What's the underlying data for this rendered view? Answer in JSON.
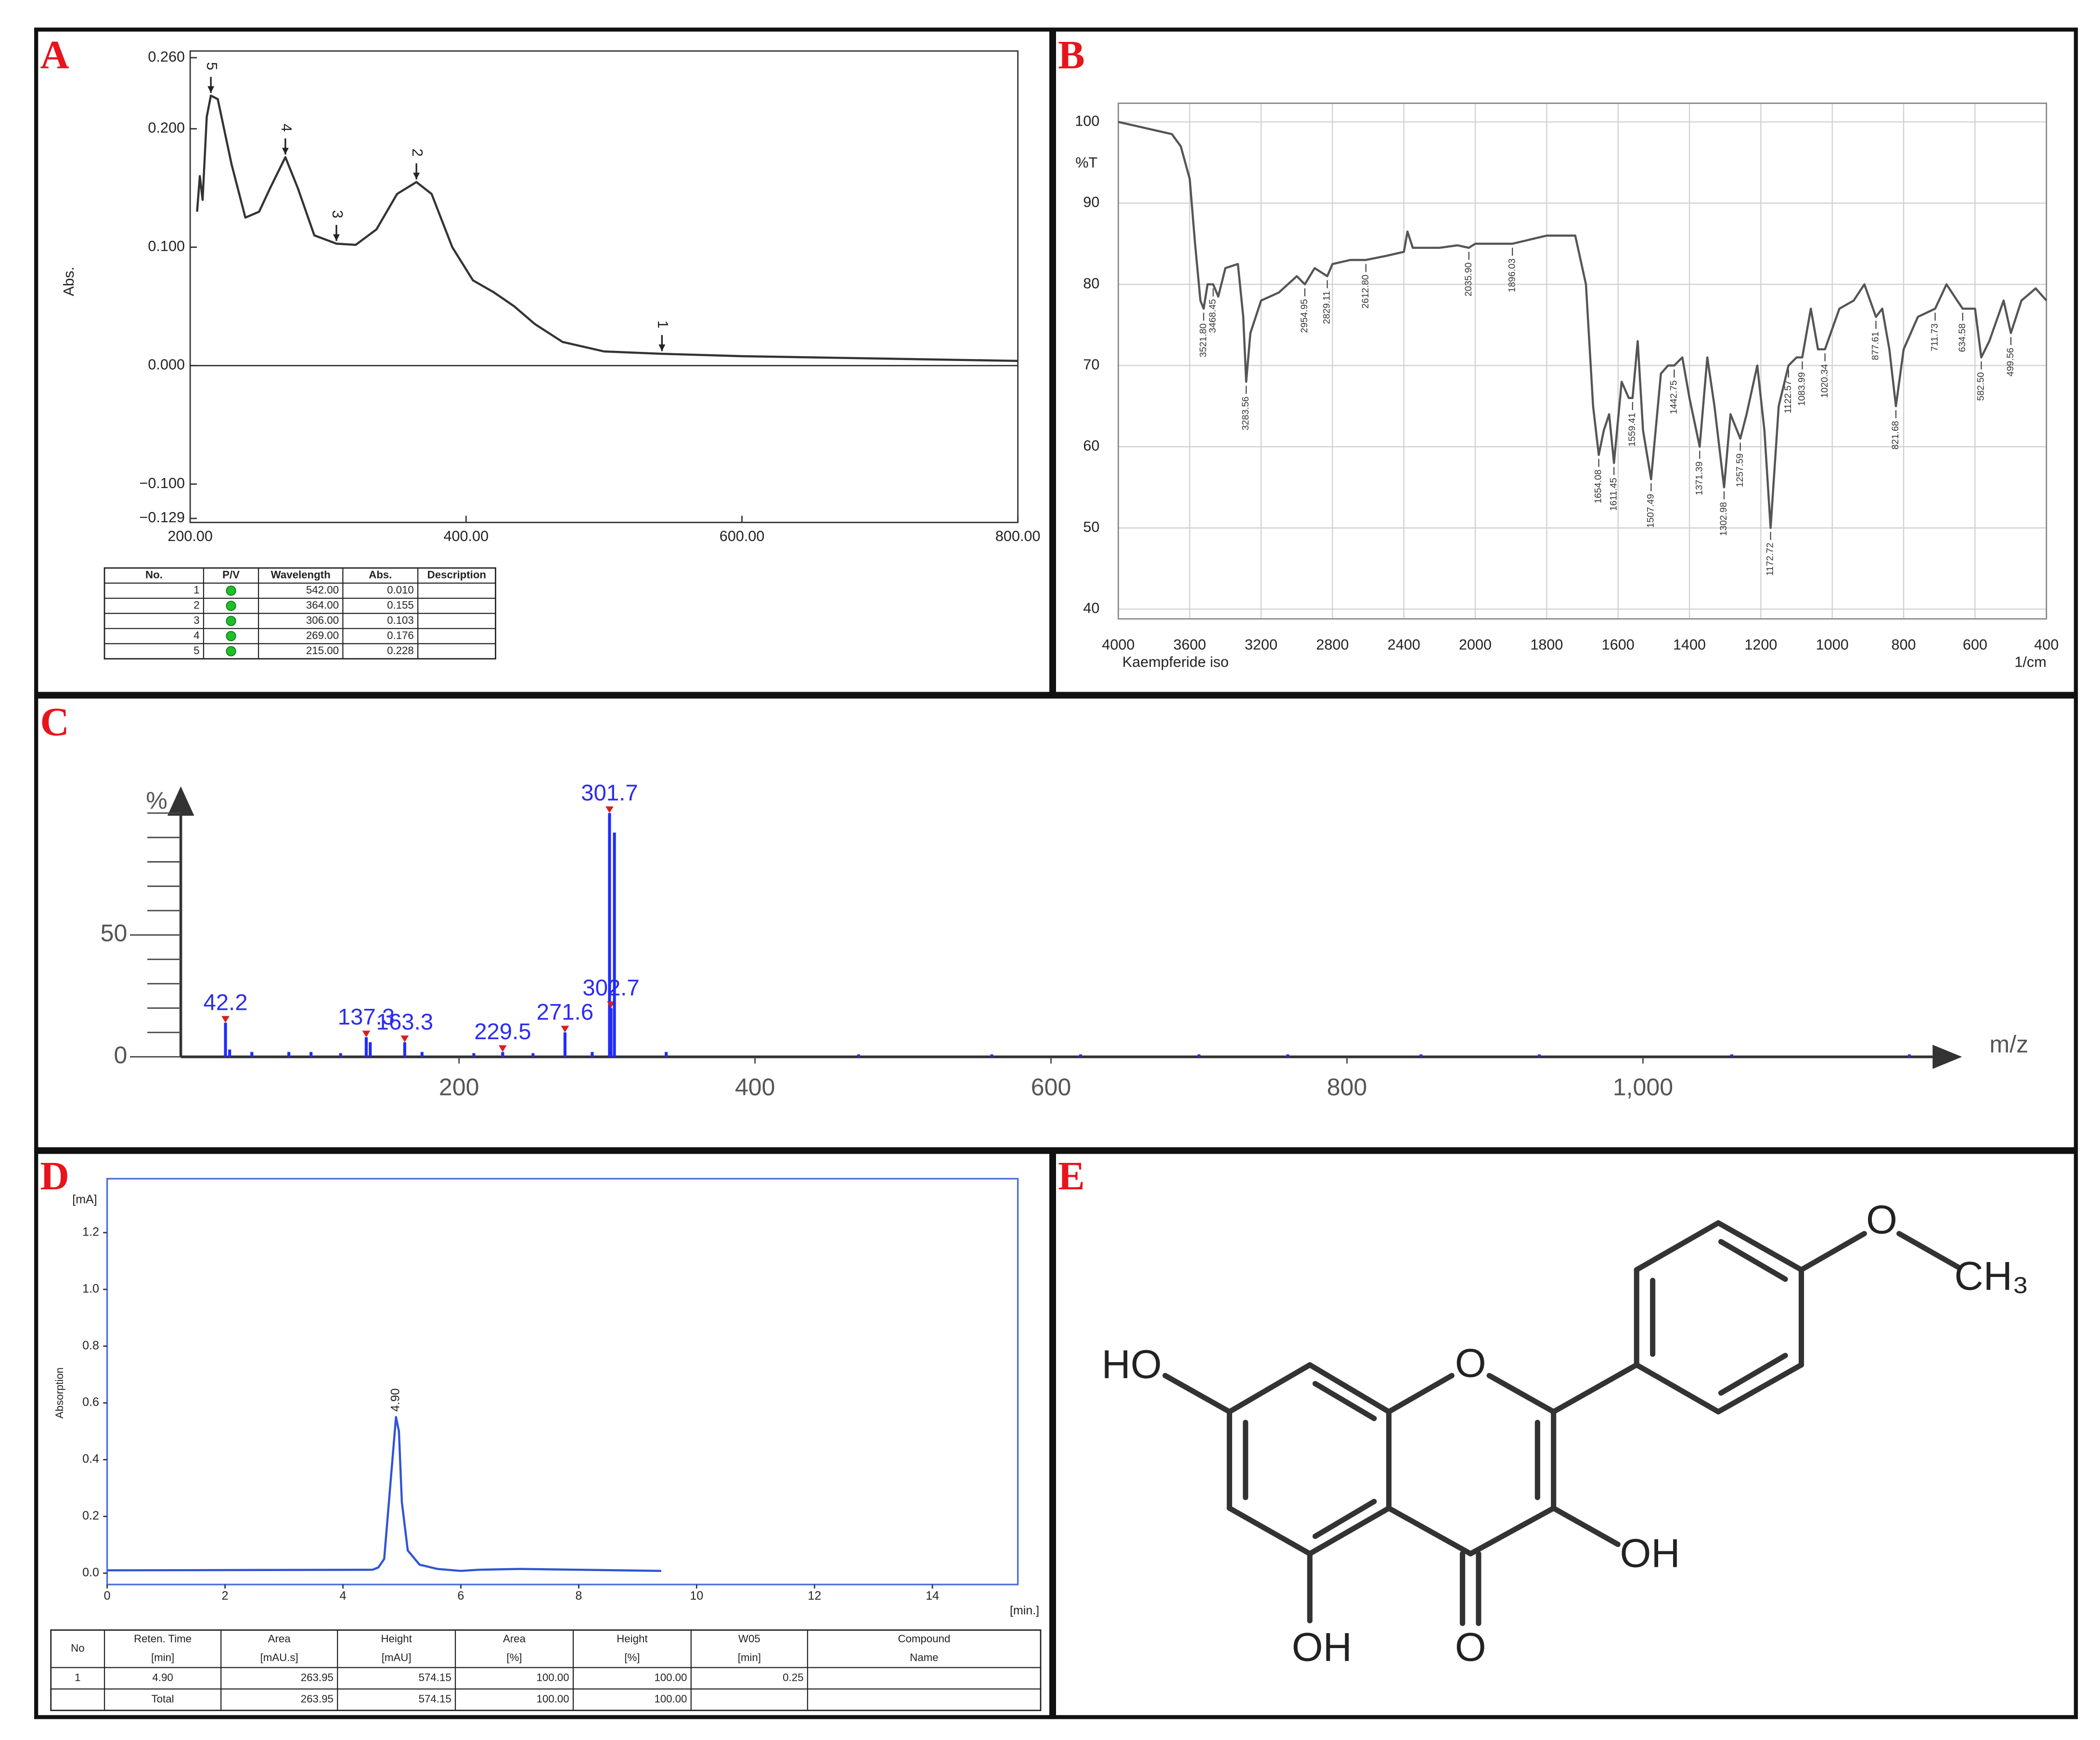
{
  "panel_labels": [
    "A",
    "B",
    "C",
    "D",
    "E"
  ],
  "chart_data": [
    {
      "type": "line",
      "ylabel": "Abs.",
      "color": "#333333",
      "x": [
        205,
        207,
        209,
        212,
        215,
        220,
        230,
        240,
        250,
        258,
        269,
        278,
        290,
        306,
        320,
        335,
        350,
        364,
        375,
        390,
        405,
        420,
        435,
        450,
        470,
        500,
        542,
        600,
        700,
        800
      ],
      "values": [
        0.13,
        0.16,
        0.14,
        0.21,
        0.228,
        0.225,
        0.17,
        0.125,
        0.13,
        0.15,
        0.176,
        0.15,
        0.11,
        0.103,
        0.102,
        0.115,
        0.145,
        0.155,
        0.145,
        0.1,
        0.072,
        0.062,
        0.05,
        0.035,
        0.02,
        0.012,
        0.01,
        0.008,
        0.006,
        0.004
      ],
      "xlim": [
        200,
        800
      ],
      "xticks": [
        {
          "value": 200,
          "label": "200.00"
        },
        {
          "value": 400,
          "label": "400.00"
        },
        {
          "value": 600,
          "label": "600.00"
        },
        {
          "value": 800,
          "label": "800.00"
        }
      ],
      "ylim": [
        -0.129,
        0.26
      ],
      "yticks": [
        {
          "value": 0.26,
          "label": "0.260"
        },
        {
          "value": 0.2,
          "label": "0.200"
        },
        {
          "value": 0.1,
          "label": "0.100"
        },
        {
          "value": 0,
          "label": "0.000"
        },
        {
          "value": -0.1,
          "label": "−0.100"
        },
        {
          "value": -0.129,
          "label": "−0.129"
        }
      ],
      "peaks": {
        "labels": [
          "1",
          "2",
          "3",
          "4",
          "5"
        ],
        "x": [
          542,
          364,
          306,
          269,
          215
        ],
        "values": [
          0.01,
          0.155,
          0.103,
          0.176,
          0.228
        ]
      },
      "table": {
        "header": [
          "No.",
          "P/V",
          "Wavelength",
          "Abs.",
          "Description"
        ],
        "rows": [
          [
            "1",
            null,
            "542.00",
            "0.010",
            null
          ],
          [
            "2",
            null,
            "364.00",
            "0.155",
            null
          ],
          [
            "3",
            null,
            "306.00",
            "0.103",
            null
          ],
          [
            "4",
            null,
            "269.00",
            "0.176",
            null
          ],
          [
            "5",
            null,
            "215.00",
            "0.228",
            null
          ]
        ]
      }
    },
    {
      "type": "line",
      "ylabel": "%T",
      "xlabel": "1/cm",
      "caption": "Kaempferide iso",
      "color": "#555555",
      "xscale": "piecewise",
      "grid": true,
      "x": [
        4000,
        3900,
        3800,
        3700,
        3650,
        3600,
        3570,
        3540,
        3521.8,
        3500,
        3468.45,
        3440,
        3400,
        3330,
        3300,
        3283.56,
        3260,
        3200,
        3100,
        3000,
        2954.95,
        2900,
        2829.11,
        2800,
        2700,
        2612.8,
        2500,
        2400,
        2380,
        2350,
        2200,
        2100,
        2035.9,
        2000,
        1896.03,
        1800,
        1720,
        1690,
        1670,
        1654.08,
        1640,
        1625,
        1611.45,
        1590,
        1570,
        1559.41,
        1545,
        1530,
        1507.49,
        1480,
        1460,
        1442.75,
        1420,
        1400,
        1371.39,
        1350,
        1330,
        1302.98,
        1285,
        1257.59,
        1240,
        1210,
        1190,
        1172.72,
        1150,
        1122.57,
        1100,
        1083.99,
        1060,
        1040,
        1020.34,
        980,
        940,
        910,
        877.61,
        860,
        840,
        821.68,
        800,
        760,
        711.73,
        680,
        650,
        634.58,
        600,
        582.5,
        560,
        520,
        499.56,
        470,
        430,
        400
      ],
      "values": [
        100,
        99.5,
        99,
        98.5,
        97,
        93,
        85,
        78,
        77,
        80,
        80,
        78.5,
        82,
        82.5,
        76,
        68,
        74,
        78,
        79,
        81,
        80,
        82,
        81,
        82.5,
        83,
        83,
        83.5,
        84,
        86.5,
        84.5,
        84.5,
        84.8,
        84.5,
        85,
        85,
        86,
        86,
        80,
        65,
        59,
        62,
        64,
        58,
        68,
        66,
        66,
        73,
        62,
        56,
        69,
        70,
        70,
        71,
        66,
        60,
        71,
        65,
        55,
        64,
        61,
        64,
        70,
        62,
        50,
        65,
        70,
        71,
        71,
        77,
        72,
        72,
        77,
        78,
        80,
        76,
        77,
        72,
        65,
        72,
        76,
        77,
        80,
        78,
        77,
        77,
        71,
        73,
        78,
        74,
        78,
        79.5,
        78
      ],
      "xlim": [
        4000,
        400
      ],
      "xticks": [
        4000,
        3600,
        3200,
        2800,
        2400,
        2000,
        1800,
        1600,
        1400,
        1200,
        1000,
        800,
        600,
        400
      ],
      "ylim": [
        38.8,
        102.3
      ],
      "yticks": [
        40,
        50,
        60,
        70,
        80,
        90,
        100
      ],
      "peaks": {
        "x": [
          3521.8,
          3468.45,
          3283.56,
          2954.95,
          2829.11,
          2612.8,
          2035.9,
          1896.03,
          1654.08,
          1611.45,
          1559.41,
          1507.49,
          1442.75,
          1371.39,
          1302.98,
          1257.59,
          1172.72,
          1122.57,
          1083.99,
          1020.34,
          877.61,
          821.68,
          711.73,
          634.58,
          582.5,
          499.56
        ],
        "values": [
          77,
          80,
          68,
          80,
          81,
          83,
          84.5,
          85,
          59,
          58,
          66,
          56,
          70,
          60,
          55,
          61,
          50,
          70,
          71,
          72,
          76,
          65,
          77,
          77,
          71,
          74
        ],
        "labels": [
          "3521.80",
          "3468.45",
          "3283.56",
          "2954.95",
          "2829.11",
          "2612.80",
          "2035.90",
          "1896.03",
          "1654.08",
          "1611.45",
          "1559.41",
          "1507.49",
          "1442.75",
          "1371.39",
          "1302.98",
          "1257.59",
          "1172.72",
          "1122.57",
          "1083.99",
          "1020.34",
          "877.61",
          "821.68",
          "711.73",
          "634.58",
          "582.50",
          "499.56"
        ]
      }
    },
    {
      "type": "bar",
      "ylabel": "%",
      "xlabel": "m/z",
      "color": "#1f2bff",
      "series": [
        {
          "labeled": true,
          "x": [
            42.2,
            137.3,
            163.3,
            229.5,
            271.6,
            301.7,
            302.7
          ],
          "values": [
            14,
            8,
            6,
            2,
            10,
            100,
            20
          ]
        },
        {
          "x": [
            305,
            45,
            60,
            85,
            100,
            120,
            140,
            175,
            210,
            250,
            290,
            340,
            470,
            560,
            620,
            700,
            760,
            850,
            930,
            1060,
            1180
          ],
          "values": [
            92,
            3,
            2,
            2,
            2,
            1.5,
            6,
            2,
            1.5,
            1.5,
            2,
            2,
            1,
            1,
            1,
            1,
            1,
            1,
            1,
            1,
            1
          ]
        }
      ],
      "xlim": [
        12,
        1212
      ],
      "xticks": [
        200,
        400,
        600,
        800,
        {
          "value": 1000,
          "label": "1,000"
        }
      ],
      "ylim": [
        0,
        111
      ],
      "yticks": [
        0,
        50
      ],
      "yminorticks": [
        10,
        20,
        30,
        40,
        60,
        70,
        80,
        90,
        100
      ]
    },
    {
      "type": "line",
      "ylabel": "Absorption",
      "yunit": "[mA]",
      "xunit": "[min.]",
      "color": "#2f55d4",
      "x": [
        0,
        4.5,
        4.6,
        4.7,
        4.8,
        4.9,
        4.95,
        5.0,
        5.1,
        5.3,
        5.6,
        6,
        6.3,
        7,
        8,
        9.4
      ],
      "values": [
        0.01,
        0.012,
        0.02,
        0.05,
        0.3,
        0.55,
        0.5,
        0.25,
        0.08,
        0.03,
        0.015,
        0.008,
        0.012,
        0.015,
        0.012,
        0.008
      ],
      "xlim": [
        0,
        15.45
      ],
      "xticks": [
        0,
        2,
        4,
        6,
        8,
        10,
        12,
        14
      ],
      "ylim": [
        -0.04,
        1.39
      ],
      "yticks": [
        {
          "value": 0,
          "label": "0.0"
        },
        0.2,
        0.4,
        0.6,
        0.8,
        {
          "value": 1,
          "label": "1.0"
        },
        1.2
      ],
      "peaks": {
        "x": [
          4.9
        ],
        "values": [
          0.55
        ],
        "labels": [
          "4.90"
        ]
      },
      "table": {
        "header": [
          [
            "No"
          ],
          [
            "Reten. Time",
            "[min]"
          ],
          [
            "Area",
            "[mAU.s]"
          ],
          [
            "Height",
            "[mAU]"
          ],
          [
            "Area",
            "[%]"
          ],
          [
            "Height",
            "[%]"
          ],
          [
            "W05",
            "[min]"
          ],
          [
            "Compound",
            "Name"
          ]
        ],
        "rows": [
          [
            "1",
            "4.90",
            "263.95",
            "574.15",
            "100.00",
            "100.00",
            "0.25",
            null
          ],
          [
            null,
            "Total",
            "263.95",
            "574.15",
            "100.00",
            "100.00",
            null,
            null
          ]
        ]
      }
    }
  ],
  "structure": {
    "atoms": [
      "O",
      "CH₃",
      "HO",
      "O",
      "OH",
      "OH",
      "O"
    ]
  }
}
